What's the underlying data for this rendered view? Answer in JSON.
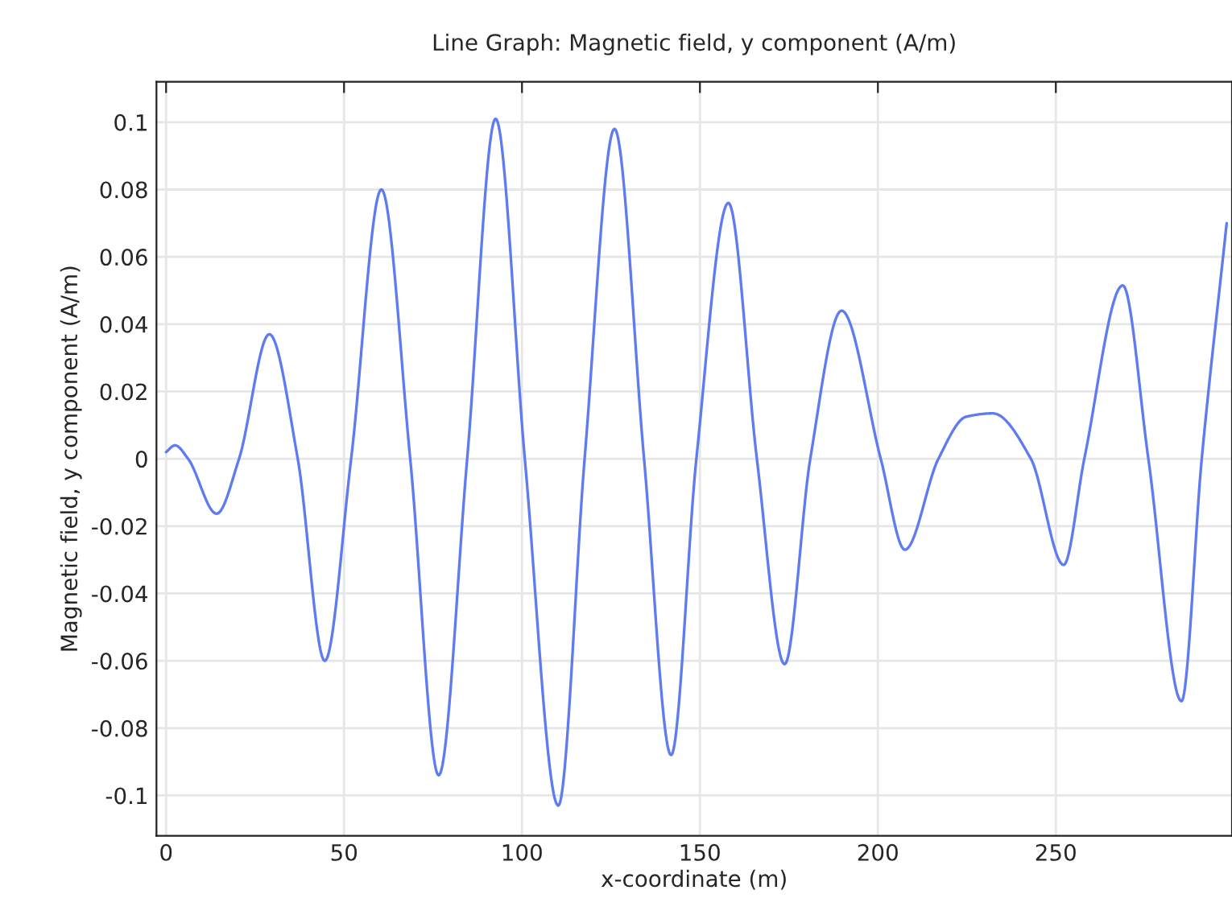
{
  "chart_data": {
    "type": "line",
    "title": "Line Graph: Magnetic field, y component (A/m)",
    "xlabel": "x-coordinate (m)",
    "ylabel": "Magnetic field, y component (A/m)",
    "xlim": [
      -2.7,
      299.5
    ],
    "ylim": [
      -0.112,
      0.112
    ],
    "xticks": [
      0,
      50,
      100,
      150,
      200,
      250
    ],
    "yticks": [
      -0.1,
      -0.08,
      -0.06,
      -0.04,
      -0.02,
      0,
      0.02,
      0.04,
      0.06,
      0.08,
      0.1
    ],
    "grid": true,
    "legend": false,
    "line_style": "solid",
    "marker": "none",
    "series": [
      {
        "color": "#5f7bf0",
        "x": [
          0,
          2.5,
          6.2,
          14.2,
          20.5,
          29,
          37,
          44.6,
          52,
          60.5,
          68.6,
          76.6,
          84.6,
          92.6,
          100.8,
          110.2,
          117.6,
          126,
          134.3,
          141.9,
          149,
          158,
          166,
          173.8,
          181,
          189.8,
          200.8,
          207.6,
          217,
          224.8,
          232.3,
          243,
          252.2,
          258,
          268.8,
          276,
          285.3,
          291,
          298
        ],
        "values": [
          0.002,
          0.004,
          0,
          -0.0163,
          0,
          0.037,
          0,
          -0.06,
          0,
          0.08,
          0,
          -0.094,
          0,
          0.101,
          0,
          -0.103,
          0,
          0.098,
          0,
          -0.088,
          0,
          0.076,
          0,
          -0.061,
          0,
          0.044,
          0,
          -0.027,
          0,
          0.0125,
          0.0135,
          0,
          -0.0315,
          0,
          0.0515,
          0,
          -0.072,
          0,
          0.07
        ]
      }
    ]
  }
}
